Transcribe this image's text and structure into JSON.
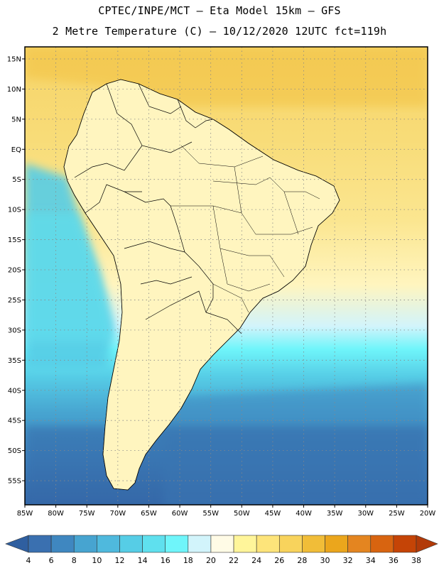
{
  "header": {
    "line1": "CPTEC/INPE/MCT –  Eta Model 15km – GFS",
    "line2": "2 Metre Temperature (C) – 10/12/2020 12UTC fct=119h"
  },
  "map": {
    "lat_labels": [
      "15N",
      "10N",
      "5N",
      "EQ",
      "5S",
      "10S",
      "15S",
      "20S",
      "25S",
      "30S",
      "35S",
      "40S",
      "45S",
      "50S",
      "55S"
    ],
    "lon_labels": [
      "85W",
      "80W",
      "75W",
      "70W",
      "65W",
      "60W",
      "55W",
      "50W",
      "45W",
      "40W",
      "35W",
      "30W",
      "25W",
      "20W"
    ],
    "lat_range": [
      17,
      -59
    ],
    "lon_range": [
      -85,
      -20
    ],
    "grid": true
  },
  "colorbar": {
    "levels": [
      "4",
      "6",
      "8",
      "10",
      "12",
      "14",
      "16",
      "18",
      "20",
      "22",
      "24",
      "26",
      "28",
      "30",
      "32",
      "34",
      "36",
      "38"
    ],
    "colors": [
      "#3a70b0",
      "#3f87c0",
      "#47a4d0",
      "#4fb9dd",
      "#56cde6",
      "#5fe0ee",
      "#6ff5fa",
      "#d2f4fb",
      "#fffbe6",
      "#fff59a",
      "#fde47a",
      "#f8d35c",
      "#f1bd38",
      "#eba61c",
      "#e48520",
      "#d86410",
      "#c54406"
    ],
    "under_color": "#2f5fa0",
    "over_color": "#b23a08"
  }
}
